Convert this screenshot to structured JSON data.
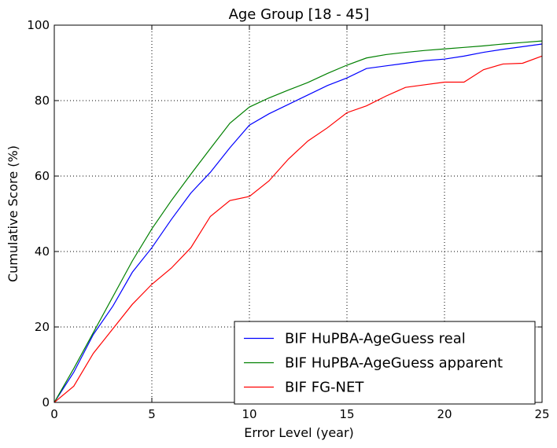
{
  "chart_data": {
    "type": "line",
    "title": "Age Group [18 - 45]",
    "xlabel": "Error Level (year)",
    "ylabel": "Cumulative Score (%)",
    "xlim": [
      0,
      25
    ],
    "ylim": [
      0,
      100
    ],
    "xticks": [
      0,
      5,
      10,
      15,
      20,
      25
    ],
    "yticks": [
      0,
      20,
      40,
      60,
      80,
      100
    ],
    "grid": true,
    "legend_position": "lower-right",
    "x": [
      0,
      1,
      2,
      3,
      4,
      5,
      6,
      7,
      8,
      9,
      10,
      11,
      12,
      13,
      14,
      15,
      16,
      17,
      18,
      19,
      20,
      21,
      22,
      23,
      24,
      25
    ],
    "series": [
      {
        "name": "BIF HuPBA-AgeGuess real",
        "color": "#0000ff",
        "values": [
          0,
          8,
          18,
          25.5,
          34.5,
          41,
          48.5,
          55.5,
          61,
          67.5,
          73.5,
          76.5,
          79,
          81.5,
          84,
          86,
          88.5,
          89.2,
          89.9,
          90.6,
          91,
          91.8,
          92.8,
          93.6,
          94.3,
          95
        ]
      },
      {
        "name": "BIF HuPBA-AgeGuess apparent",
        "color": "#008000",
        "values": [
          0,
          9,
          18.5,
          28,
          37.5,
          46,
          53.5,
          60.5,
          67.3,
          74,
          78.3,
          80.7,
          82.8,
          84.8,
          87.2,
          89.4,
          91.3,
          92.2,
          92.8,
          93.3,
          93.7,
          94.1,
          94.5,
          95,
          95.4,
          95.8
        ]
      },
      {
        "name": "BIF FG-NET",
        "color": "#ff0000",
        "values": [
          0,
          4.3,
          13,
          19.5,
          26,
          31.3,
          35.6,
          41,
          49.3,
          53.5,
          54.6,
          58.7,
          64.5,
          69.3,
          72.8,
          76.8,
          78.6,
          81.2,
          83.5,
          84.2,
          84.9,
          84.9,
          88.2,
          89.7,
          89.9,
          91.8
        ]
      }
    ]
  }
}
